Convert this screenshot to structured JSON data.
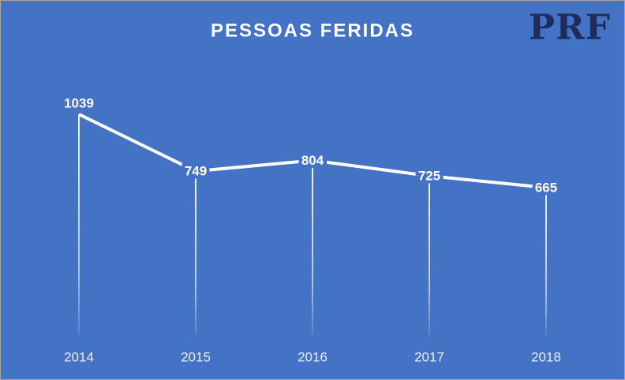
{
  "logo": "PRF",
  "chart_data": {
    "type": "line",
    "title": "PESSOAS FERIDAS",
    "categories": [
      "2014",
      "2015",
      "2016",
      "2017",
      "2018"
    ],
    "values": [
      1039,
      749,
      804,
      725,
      665
    ],
    "color": "#ffffff",
    "data_labels": true,
    "drop_lines": true
  }
}
